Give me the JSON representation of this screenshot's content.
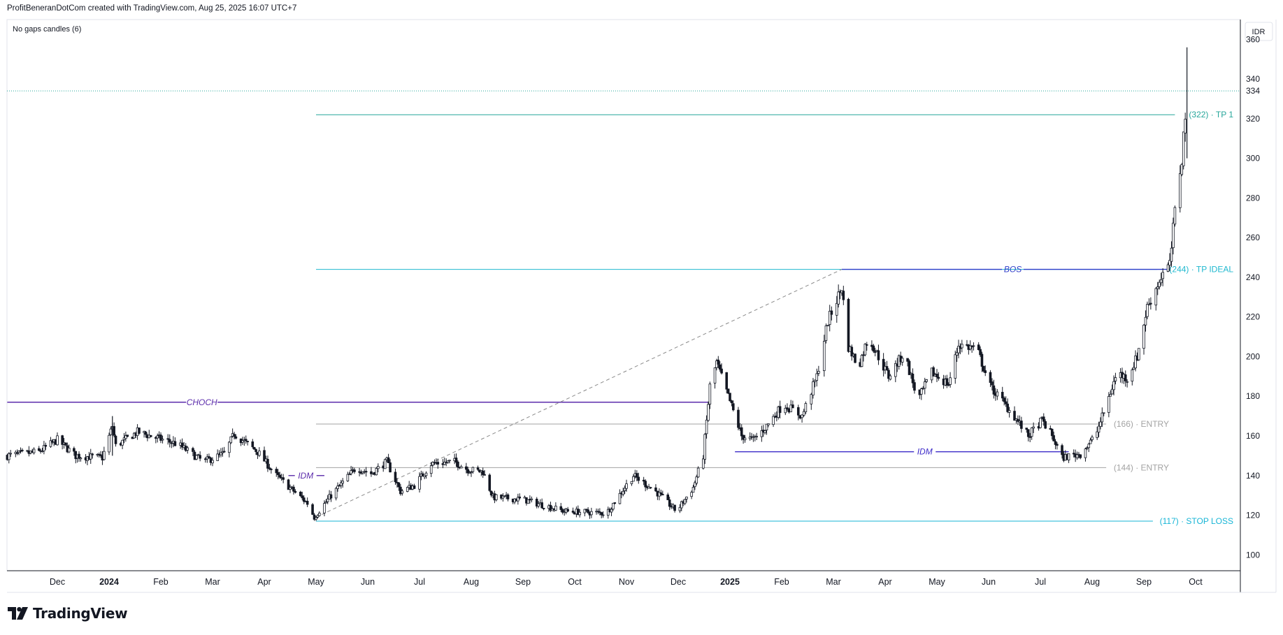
{
  "header": {
    "attribution": "ProfitBeneranDotCom created with TradingView.com, Aug 25, 2025 16:07 UTC+7"
  },
  "indicator_label": "No gaps candles (6)",
  "currency_label": "IDR",
  "brand": {
    "name": "TradingView"
  },
  "colors": {
    "candle": "#131722",
    "choch": "#5b2bab",
    "idm": "#3d2bc8",
    "bos": "#2d3cc9",
    "tp1": "#26a69a",
    "tp_ideal": "#1fb8cf",
    "entry": "#a3a3a3",
    "stop_loss": "#17b5d6",
    "dashed": "#8a8a8a",
    "last_price_line": "#26a69a"
  },
  "chart_data": {
    "type": "candlestick",
    "symbol_currency": "IDR",
    "yaxis": {
      "ticks": [
        100,
        120,
        140,
        160,
        180,
        200,
        220,
        240,
        260,
        280,
        300,
        320,
        340,
        360
      ],
      "range": [
        92,
        370
      ]
    },
    "xaxis": {
      "ticks": [
        {
          "label": "Dec",
          "date": "2023-12-01",
          "bold": false
        },
        {
          "label": "2024",
          "date": "2024-01-01",
          "bold": true
        },
        {
          "label": "Feb",
          "date": "2024-02-01",
          "bold": false
        },
        {
          "label": "Mar",
          "date": "2024-03-01",
          "bold": false
        },
        {
          "label": "Apr",
          "date": "2024-04-01",
          "bold": false
        },
        {
          "label": "May",
          "date": "2024-05-01",
          "bold": false
        },
        {
          "label": "Jun",
          "date": "2024-06-01",
          "bold": false
        },
        {
          "label": "Jul",
          "date": "2024-07-01",
          "bold": false
        },
        {
          "label": "Aug",
          "date": "2024-08-01",
          "bold": false
        },
        {
          "label": "Sep",
          "date": "2024-09-01",
          "bold": false
        },
        {
          "label": "Oct",
          "date": "2024-10-01",
          "bold": false
        },
        {
          "label": "Nov",
          "date": "2024-11-01",
          "bold": false
        },
        {
          "label": "Dec",
          "date": "2024-12-01",
          "bold": false
        },
        {
          "label": "2025",
          "date": "2025-01-01",
          "bold": true
        },
        {
          "label": "Feb",
          "date": "2025-02-01",
          "bold": false
        },
        {
          "label": "Mar",
          "date": "2025-03-01",
          "bold": false
        },
        {
          "label": "Apr",
          "date": "2025-04-01",
          "bold": false
        },
        {
          "label": "May",
          "date": "2025-05-01",
          "bold": false
        },
        {
          "label": "Jun",
          "date": "2025-06-01",
          "bold": false
        },
        {
          "label": "Jul",
          "date": "2025-07-01",
          "bold": false
        },
        {
          "label": "Aug",
          "date": "2025-08-01",
          "bold": false
        },
        {
          "label": "Sep",
          "date": "2025-09-01",
          "bold": false
        },
        {
          "label": "Oct",
          "date": "2025-10-01",
          "bold": false
        }
      ]
    },
    "last_price": 334,
    "close_path": [
      [
        "2023-11-01",
        150
      ],
      [
        "2023-11-20",
        152
      ],
      [
        "2023-12-01",
        158
      ],
      [
        "2023-12-12",
        150
      ],
      [
        "2023-12-28",
        149
      ],
      [
        "2024-01-03",
        165
      ],
      [
        "2024-01-05",
        155
      ],
      [
        "2024-01-18",
        162
      ],
      [
        "2024-02-10",
        156
      ],
      [
        "2024-02-25",
        147
      ],
      [
        "2024-03-08",
        151
      ],
      [
        "2024-03-14",
        161
      ],
      [
        "2024-03-28",
        152
      ],
      [
        "2024-04-08",
        140
      ],
      [
        "2024-04-26",
        126
      ],
      [
        "2024-04-30",
        119
      ],
      [
        "2024-05-10",
        130
      ],
      [
        "2024-05-25",
        144
      ],
      [
        "2024-06-03",
        141
      ],
      [
        "2024-06-12",
        147
      ],
      [
        "2024-06-20",
        132
      ],
      [
        "2024-06-28",
        135
      ],
      [
        "2024-07-08",
        146
      ],
      [
        "2024-07-22",
        147
      ],
      [
        "2024-07-30",
        143
      ],
      [
        "2024-08-08",
        142
      ],
      [
        "2024-08-14",
        129
      ],
      [
        "2024-09-01",
        128
      ],
      [
        "2024-09-25",
        122
      ],
      [
        "2024-10-20",
        121
      ],
      [
        "2024-11-05",
        140
      ],
      [
        "2024-11-18",
        132
      ],
      [
        "2024-11-30",
        122
      ],
      [
        "2024-12-10",
        134
      ],
      [
        "2024-12-16",
        150
      ],
      [
        "2024-12-20",
        185
      ],
      [
        "2024-12-24",
        197
      ],
      [
        "2025-01-02",
        175
      ],
      [
        "2025-01-08",
        160
      ],
      [
        "2025-01-15",
        158
      ],
      [
        "2025-01-22",
        164
      ],
      [
        "2025-02-02",
        176
      ],
      [
        "2025-02-12",
        170
      ],
      [
        "2025-02-20",
        190
      ],
      [
        "2025-02-26",
        218
      ],
      [
        "2025-03-06",
        235
      ],
      [
        "2025-03-10",
        205
      ],
      [
        "2025-03-16",
        195
      ],
      [
        "2025-03-22",
        210
      ],
      [
        "2025-04-03",
        190
      ],
      [
        "2025-04-12",
        202
      ],
      [
        "2025-04-20",
        178
      ],
      [
        "2025-04-28",
        192
      ],
      [
        "2025-05-08",
        186
      ],
      [
        "2025-05-14",
        206
      ],
      [
        "2025-05-25",
        204
      ],
      [
        "2025-06-02",
        185
      ],
      [
        "2025-06-14",
        172
      ],
      [
        "2025-06-24",
        160
      ],
      [
        "2025-07-02",
        168
      ],
      [
        "2025-07-08",
        160
      ],
      [
        "2025-07-14",
        149
      ],
      [
        "2025-07-25",
        151
      ],
      [
        "2025-08-03",
        160
      ],
      [
        "2025-08-08",
        172
      ],
      [
        "2025-08-16",
        192
      ],
      [
        "2025-08-22",
        189
      ],
      [
        "2025-08-28",
        200
      ],
      [
        "2025-09-03",
        225
      ],
      [
        "2025-09-12",
        242
      ],
      [
        "2025-09-16",
        246
      ],
      [
        "2025-09-20",
        282
      ],
      [
        "2025-09-23",
        300
      ],
      [
        "2025-09-26",
        334
      ]
    ],
    "spikes": [
      {
        "date": "2024-01-03",
        "high": 170,
        "low": 150
      },
      {
        "date": "2025-09-26",
        "high": 356,
        "low": 300
      }
    ],
    "annotations": [
      {
        "kind": "hline",
        "label": "CHOCH",
        "value": 177,
        "from": "2023-11-01",
        "to": "2024-12-19",
        "label_at": "2024-02-24",
        "color": "choch",
        "width": 1.6,
        "italic": true
      },
      {
        "kind": "hline",
        "label": "IDM",
        "value": 140,
        "from": "2024-04-15",
        "to": "2024-05-06",
        "label_at": "2024-04-25",
        "color": "choch",
        "width": 1.4,
        "italic": true
      },
      {
        "kind": "hline",
        "label": "IDM",
        "value": 152,
        "from": "2025-01-04",
        "to": "2025-07-18",
        "label_at": "2025-04-24",
        "color": "idm",
        "width": 1.4,
        "italic": true
      },
      {
        "kind": "hline",
        "label": "BOS",
        "value": 244,
        "from": "2025-03-06",
        "to": "2025-09-16",
        "label_at": "2025-06-15",
        "color": "bos",
        "width": 1.4,
        "italic": true
      },
      {
        "kind": "dashed",
        "from": [
          "2024-05-01",
          119
        ],
        "to": [
          "2025-03-06",
          244
        ],
        "color": "dashed"
      }
    ],
    "levels": [
      {
        "label": "(322) · TP 1",
        "value": 322,
        "from": "2024-05-01",
        "color": "tp1"
      },
      {
        "label": "(244) · TP IDEAL",
        "value": 244,
        "from": "2024-05-01",
        "color": "tp_ideal"
      },
      {
        "label": "(166) · ENTRY",
        "value": 166,
        "from": "2024-05-01",
        "color": "entry"
      },
      {
        "label": "(144) · ENTRY",
        "value": 144,
        "from": "2024-05-01",
        "color": "entry"
      },
      {
        "label": "(117) · STOP LOSS",
        "value": 117,
        "from": "2024-05-01",
        "color": "stop_loss"
      }
    ]
  }
}
